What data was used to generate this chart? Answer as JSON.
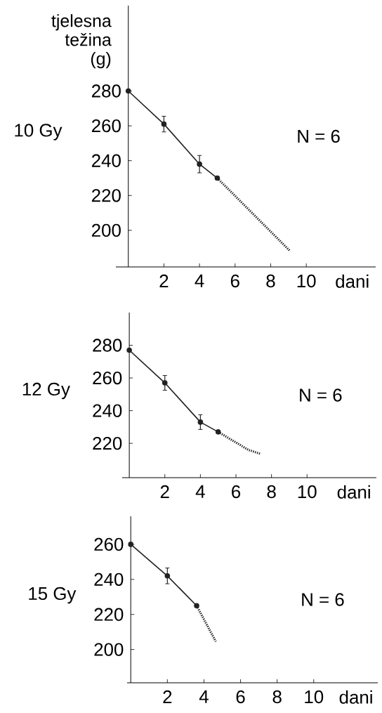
{
  "chart_data": [
    {
      "type": "line",
      "title": "10 Gy",
      "ylabel": "tjelesna težina (g)",
      "xlabel": "dani",
      "annotations": [
        "N = 6"
      ],
      "xlim": [
        -0.7,
        13.9
      ],
      "ylim": [
        179,
        329
      ],
      "xticks": [
        2,
        4,
        6,
        8,
        10
      ],
      "yticks": [
        200,
        220,
        240,
        260,
        280
      ],
      "grid": false,
      "series": [
        {
          "color": "#222222",
          "x": [
            0,
            2,
            4,
            5
          ],
          "values": [
            280,
            261,
            238,
            230
          ],
          "errors": [
            null,
            4.5,
            5,
            null
          ],
          "marker": "circle",
          "line_style": "solid"
        },
        {
          "color": "#222222",
          "x": [
            5,
            9.1
          ],
          "values": [
            230,
            188
          ],
          "marker": "none",
          "line_style": "dotted"
        }
      ]
    },
    {
      "type": "line",
      "title": "12 Gy",
      "xlabel": "dani",
      "annotations": [
        "N = 6"
      ],
      "xlim": [
        -0.4,
        13.9
      ],
      "ylim": [
        199,
        300
      ],
      "xticks": [
        2,
        4,
        6,
        8,
        10
      ],
      "yticks": [
        220,
        240,
        260,
        280
      ],
      "grid": false,
      "series": [
        {
          "color": "#222222",
          "x": [
            0,
            2,
            4,
            5
          ],
          "values": [
            277,
            257,
            233,
            227
          ],
          "errors": [
            null,
            4.5,
            4.5,
            null
          ],
          "marker": "circle",
          "line_style": "solid"
        },
        {
          "color": "#222222",
          "x": [
            5,
            6.7,
            7.4
          ],
          "values": [
            227,
            216,
            213.5
          ],
          "marker": "none",
          "line_style": "dotted"
        }
      ]
    },
    {
      "type": "line",
      "title": "15 Gy",
      "xlabel": "dani",
      "annotations": [
        "N = 6"
      ],
      "xlim": [
        -0.2,
        13.5
      ],
      "ylim": [
        181,
        276
      ],
      "xticks": [
        2,
        4,
        6,
        8,
        10
      ],
      "yticks": [
        200,
        220,
        240,
        260
      ],
      "grid": false,
      "series": [
        {
          "color": "#222222",
          "x": [
            0,
            2,
            3.6
          ],
          "values": [
            260,
            242,
            225
          ],
          "errors": [
            null,
            4.5,
            null
          ],
          "marker": "circle",
          "line_style": "solid"
        },
        {
          "color": "#222222",
          "x": [
            3.6,
            4.65
          ],
          "values": [
            225,
            204.5
          ],
          "marker": "none",
          "line_style": "dotted"
        }
      ]
    }
  ]
}
